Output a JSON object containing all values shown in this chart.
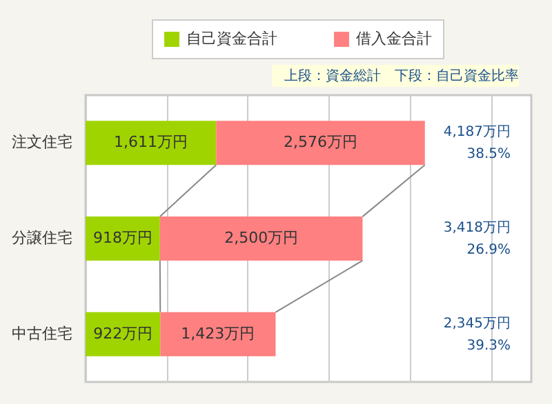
{
  "chart_data": {
    "type": "bar",
    "orientation": "horizontal",
    "stacked": true,
    "categories": [
      "注文住宅",
      "分譲住宅",
      "中古住宅"
    ],
    "series": [
      {
        "name": "自己資金合計",
        "color": "#a0d400",
        "values": [
          1611,
          918,
          922
        ],
        "value_labels": [
          "1,611万円",
          "918万円",
          "922万円"
        ]
      },
      {
        "name": "借入金合計",
        "color": "#ff8080",
        "values": [
          2576,
          2500,
          1423
        ],
        "value_labels": [
          "2,576万円",
          "2,500万円",
          "1,423万円"
        ]
      }
    ],
    "annotations": [
      "上段：資金総計　下段：自己資金比率",
      "4,187万円",
      "38.5%",
      "3,418万円",
      "26.9%",
      "2,345万円",
      "39.3%"
    ],
    "xlim": [
      0,
      5500
    ],
    "xticks": [
      {
        "value": 0,
        "label": null
      },
      {
        "value": 1000,
        "label": null
      },
      {
        "value": 2000,
        "label": null
      },
      {
        "value": 3000,
        "label": null
      },
      {
        "value": 4000,
        "label": null
      },
      {
        "value": 5000,
        "label": null
      }
    ],
    "grid": "x",
    "legend": "top"
  }
}
